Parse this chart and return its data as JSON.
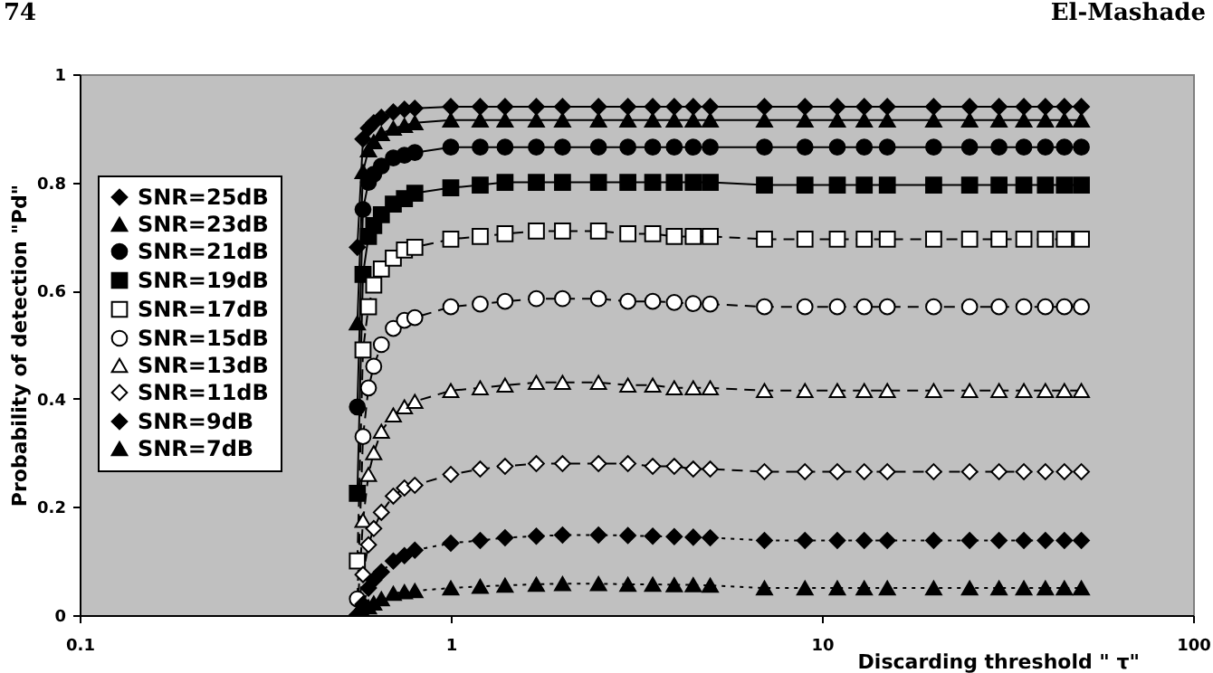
{
  "chart_data": {
    "type": "line",
    "xlabel": "Discarding threshold \" τ\"",
    "ylabel": "Probability of detection \"Pd\"",
    "annotations": [
      "74",
      "El-Mashade"
    ],
    "x": [
      0.56,
      0.58,
      0.6,
      0.62,
      0.65,
      0.7,
      0.75,
      0.8,
      1,
      1.2,
      1.4,
      1.7,
      2,
      2.5,
      3,
      3.5,
      4,
      4.5,
      5,
      7,
      9,
      11,
      13,
      15,
      20,
      25,
      30,
      35,
      40,
      45,
      50
    ],
    "xlim": [
      0.1,
      100
    ],
    "xticks": [
      0.1,
      1,
      10,
      100
    ],
    "log": "x",
    "ylim": [
      0,
      1
    ],
    "yticks": [
      0,
      0.2,
      0.4,
      0.6,
      0.8,
      1
    ],
    "grid": false,
    "legend": "left",
    "series": [
      {
        "name": "SNR=25dB",
        "color": "#000000",
        "marker": "diamond",
        "line_style": "solid",
        "values": [
          0.68,
          0.88,
          0.9,
          0.91,
          0.92,
          0.93,
          0.935,
          0.937,
          0.94,
          0.94,
          0.94,
          0.94,
          0.94,
          0.94,
          0.94,
          0.94,
          0.94,
          0.94,
          0.94,
          0.94,
          0.94,
          0.94,
          0.94,
          0.94,
          0.94,
          0.94,
          0.94,
          0.94,
          0.94,
          0.94,
          0.94
        ]
      },
      {
        "name": "SNR=23dB",
        "color": "#000000",
        "marker": "triangle",
        "line_style": "solid",
        "values": [
          0.54,
          0.82,
          0.86,
          0.875,
          0.89,
          0.9,
          0.905,
          0.91,
          0.915,
          0.915,
          0.915,
          0.915,
          0.915,
          0.915,
          0.915,
          0.915,
          0.915,
          0.915,
          0.915,
          0.915,
          0.915,
          0.915,
          0.915,
          0.915,
          0.915,
          0.915,
          0.915,
          0.915,
          0.915,
          0.915,
          0.915
        ]
      },
      {
        "name": "SNR=21dB",
        "color": "#000000",
        "marker": "circle",
        "line_style": "solid",
        "values": [
          0.385,
          0.75,
          0.8,
          0.815,
          0.83,
          0.845,
          0.85,
          0.855,
          0.865,
          0.865,
          0.865,
          0.865,
          0.865,
          0.865,
          0.865,
          0.865,
          0.865,
          0.865,
          0.865,
          0.865,
          0.865,
          0.865,
          0.865,
          0.865,
          0.865,
          0.865,
          0.865,
          0.865,
          0.865,
          0.865,
          0.865
        ]
      },
      {
        "name": "SNR=19dB",
        "color": "#000000",
        "marker": "square",
        "line_style": "solid",
        "values": [
          0.225,
          0.63,
          0.7,
          0.72,
          0.74,
          0.76,
          0.77,
          0.78,
          0.79,
          0.795,
          0.8,
          0.8,
          0.8,
          0.8,
          0.8,
          0.8,
          0.8,
          0.8,
          0.8,
          0.795,
          0.795,
          0.795,
          0.795,
          0.795,
          0.795,
          0.795,
          0.795,
          0.795,
          0.795,
          0.795,
          0.795
        ]
      },
      {
        "name": "SNR=17dB",
        "color": "#ffffff",
        "marker": "square",
        "line_style": "dashed",
        "values": [
          0.1,
          0.49,
          0.57,
          0.61,
          0.64,
          0.66,
          0.675,
          0.68,
          0.695,
          0.7,
          0.705,
          0.71,
          0.71,
          0.71,
          0.705,
          0.705,
          0.7,
          0.7,
          0.7,
          0.695,
          0.695,
          0.695,
          0.695,
          0.695,
          0.695,
          0.695,
          0.695,
          0.695,
          0.695,
          0.695,
          0.695
        ]
      },
      {
        "name": "SNR=15dB",
        "color": "#ffffff",
        "marker": "circle",
        "line_style": "dashed",
        "values": [
          0.03,
          0.33,
          0.42,
          0.46,
          0.5,
          0.53,
          0.545,
          0.55,
          0.57,
          0.575,
          0.58,
          0.585,
          0.585,
          0.585,
          0.58,
          0.58,
          0.578,
          0.576,
          0.575,
          0.57,
          0.57,
          0.57,
          0.57,
          0.57,
          0.57,
          0.57,
          0.57,
          0.57,
          0.57,
          0.57,
          0.57
        ]
      },
      {
        "name": "SNR=13dB",
        "color": "#ffffff",
        "marker": "triangle",
        "line_style": "dashed",
        "values": [
          0.005,
          0.175,
          0.26,
          0.3,
          0.34,
          0.37,
          0.385,
          0.395,
          0.415,
          0.42,
          0.425,
          0.43,
          0.43,
          0.43,
          0.425,
          0.425,
          0.42,
          0.42,
          0.42,
          0.415,
          0.415,
          0.415,
          0.415,
          0.415,
          0.415,
          0.415,
          0.415,
          0.415,
          0.415,
          0.415,
          0.415
        ]
      },
      {
        "name": "SNR=11dB",
        "color": "#ffffff",
        "marker": "diamond",
        "line_style": "dashed",
        "values": [
          0,
          0.075,
          0.13,
          0.16,
          0.19,
          0.22,
          0.235,
          0.24,
          0.26,
          0.27,
          0.275,
          0.28,
          0.28,
          0.28,
          0.28,
          0.275,
          0.275,
          0.27,
          0.27,
          0.265,
          0.265,
          0.265,
          0.265,
          0.265,
          0.265,
          0.265,
          0.265,
          0.265,
          0.265,
          0.265,
          0.265
        ]
      },
      {
        "name": "SNR=9dB",
        "color": "#000000",
        "marker": "diamond",
        "line_style": "dotted",
        "values": [
          0,
          0.02,
          0.05,
          0.065,
          0.08,
          0.1,
          0.11,
          0.12,
          0.133,
          0.138,
          0.143,
          0.146,
          0.148,
          0.148,
          0.147,
          0.146,
          0.145,
          0.144,
          0.143,
          0.138,
          0.138,
          0.138,
          0.138,
          0.138,
          0.138,
          0.138,
          0.138,
          0.138,
          0.138,
          0.138,
          0.138
        ]
      },
      {
        "name": "SNR=7dB",
        "color": "#000000",
        "marker": "triangle",
        "line_style": "dotted",
        "values": [
          0,
          0.005,
          0.015,
          0.022,
          0.03,
          0.04,
          0.043,
          0.045,
          0.05,
          0.053,
          0.055,
          0.057,
          0.058,
          0.058,
          0.057,
          0.057,
          0.056,
          0.056,
          0.055,
          0.05,
          0.05,
          0.05,
          0.05,
          0.05,
          0.05,
          0.05,
          0.05,
          0.05,
          0.05,
          0.05,
          0.05
        ]
      }
    ]
  }
}
